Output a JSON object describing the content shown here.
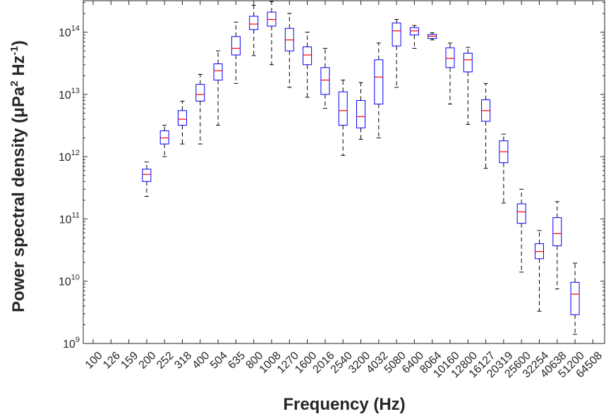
{
  "chart_data": {
    "type": "box",
    "xlabel": "Frequency (Hz)",
    "ylabel": {
      "text": "Power spectral density (μPa",
      "sup1": "2",
      "mid": " Hz",
      "sup2": "-1",
      "end": ")"
    },
    "yscale": "log",
    "ylim": [
      1000000000.0,
      320000000000000.0
    ],
    "ytick_labels": [
      {
        "base": "10",
        "exp": "9"
      },
      {
        "base": "10",
        "exp": "10"
      },
      {
        "base": "10",
        "exp": "11"
      },
      {
        "base": "10",
        "exp": "12"
      },
      {
        "base": "10",
        "exp": "13"
      },
      {
        "base": "10",
        "exp": "14"
      }
    ],
    "categories": [
      "100",
      "126",
      "159",
      "200",
      "252",
      "318",
      "400",
      "504",
      "635",
      "800",
      "1008",
      "1270",
      "1600",
      "2016",
      "2540",
      "3200",
      "4032",
      "5080",
      "6400",
      "8064",
      "10160",
      "12800",
      "16127",
      "20319",
      "25600",
      "32254",
      "40638",
      "51200",
      "64508"
    ],
    "boxes": [
      null,
      null,
      null,
      {
        "whisker_low": 230000000000.0,
        "q1": 400000000000.0,
        "median": 520000000000.0,
        "q3": 630000000000.0,
        "whisker_high": 820000000000.0
      },
      {
        "whisker_low": 1000000000000.0,
        "q1": 1600000000000.0,
        "median": 2000000000000.0,
        "q3": 2600000000000.0,
        "whisker_high": 3200000000000.0
      },
      {
        "whisker_low": 1600000000000.0,
        "q1": 3200000000000.0,
        "median": 4000000000000.0,
        "q3": 5500000000000.0,
        "whisker_high": 7800000000000.0
      },
      {
        "whisker_low": 1600000000000.0,
        "q1": 7800000000000.0,
        "median": 10000000000000.0,
        "q3": 14500000000000.0,
        "whisker_high": 21000000000000.0
      },
      {
        "whisker_low": 3200000000000.0,
        "q1": 17000000000000.0,
        "median": 24000000000000.0,
        "q3": 31000000000000.0,
        "whisker_high": 50000000000000.0
      },
      {
        "whisker_low": 15000000000000.0,
        "q1": 43000000000000.0,
        "median": 55000000000000.0,
        "q3": 85000000000000.0,
        "whisker_high": 145000000000000.0
      },
      {
        "whisker_low": 42000000000000.0,
        "q1": 110000000000000.0,
        "median": 135000000000000.0,
        "q3": 180000000000000.0,
        "whisker_high": 270000000000000.0
      },
      {
        "whisker_low": 30000000000000.0,
        "q1": 125000000000000.0,
        "median": 160000000000000.0,
        "q3": 210000000000000.0,
        "whisker_high": 310000000000000.0
      },
      {
        "whisker_low": 13000000000000.0,
        "q1": 50000000000000.0,
        "median": 75000000000000.0,
        "q3": 115000000000000.0,
        "whisker_high": 200000000000000.0
      },
      {
        "whisker_low": 9000000000000.0,
        "q1": 30000000000000.0,
        "median": 43000000000000.0,
        "q3": 58000000000000.0,
        "whisker_high": 100000000000000.0
      },
      {
        "whisker_low": 6000000000000.0,
        "q1": 10000000000000.0,
        "median": 17000000000000.0,
        "q3": 27000000000000.0,
        "whisker_high": 55000000000000.0
      },
      {
        "whisker_low": 1050000000000.0,
        "q1": 3200000000000.0,
        "median": 5500000000000.0,
        "q3": 11000000000000.0,
        "whisker_high": 17000000000000.0
      },
      {
        "whisker_low": 1900000000000.0,
        "q1": 2900000000000.0,
        "median": 4400000000000.0,
        "q3": 8000000000000.0,
        "whisker_high": 15500000000000.0
      },
      {
        "whisker_low": 2000000000000.0,
        "q1": 7000000000000.0,
        "median": 19000000000000.0,
        "q3": 36000000000000.0,
        "whisker_high": 67000000000000.0
      },
      {
        "whisker_low": 13000000000000.0,
        "q1": 60000000000000.0,
        "median": 105000000000000.0,
        "q3": 140000000000000.0,
        "whisker_high": 160000000000000.0
      },
      {
        "whisker_low": 55000000000000.0,
        "q1": 90000000000000.0,
        "median": 105000000000000.0,
        "q3": 118000000000000.0,
        "whisker_high": 128000000000000.0
      },
      {
        "whisker_low": 75000000000000.0,
        "q1": 79000000000000.0,
        "median": 86000000000000.0,
        "q3": 92000000000000.0,
        "whisker_high": 98000000000000.0
      },
      {
        "whisker_low": 7000000000000.0,
        "q1": 27000000000000.0,
        "median": 38000000000000.0,
        "q3": 56000000000000.0,
        "whisker_high": 67000000000000.0
      },
      {
        "whisker_low": 3300000000000.0,
        "q1": 23000000000000.0,
        "median": 36000000000000.0,
        "q3": 46000000000000.0,
        "whisker_high": 57000000000000.0
      },
      {
        "whisker_low": 650000000000.0,
        "q1": 3700000000000.0,
        "median": 5500000000000.0,
        "q3": 8200000000000.0,
        "whisker_high": 15000000000000.0
      },
      {
        "whisker_low": 180000000000.0,
        "q1": 800000000000.0,
        "median": 1200000000000.0,
        "q3": 1800000000000.0,
        "whisker_high": 2300000000000.0
      },
      {
        "whisker_low": 14000000000.0,
        "q1": 85000000000.0,
        "median": 130000000000.0,
        "q3": 175000000000.0,
        "whisker_high": 300000000000.0
      },
      {
        "whisker_low": 3300000000.0,
        "q1": 23000000000.0,
        "median": 30000000000.0,
        "q3": 40000000000.0,
        "whisker_high": 65000000000.0
      },
      {
        "whisker_low": 7500000000.0,
        "q1": 37000000000.0,
        "median": 58000000000.0,
        "q3": 105000000000.0,
        "whisker_high": 190000000000.0
      },
      {
        "whisker_low": 1400000000.0,
        "q1": 2900000000.0,
        "median": 6200000000.0,
        "q3": 9600000000.0,
        "whisker_high": 19500000000.0
      },
      null
    ],
    "colors": {
      "box": "#0000ff",
      "median": "#ff0000",
      "whisker": "#000000",
      "axis": "#262626"
    },
    "grid": false
  }
}
